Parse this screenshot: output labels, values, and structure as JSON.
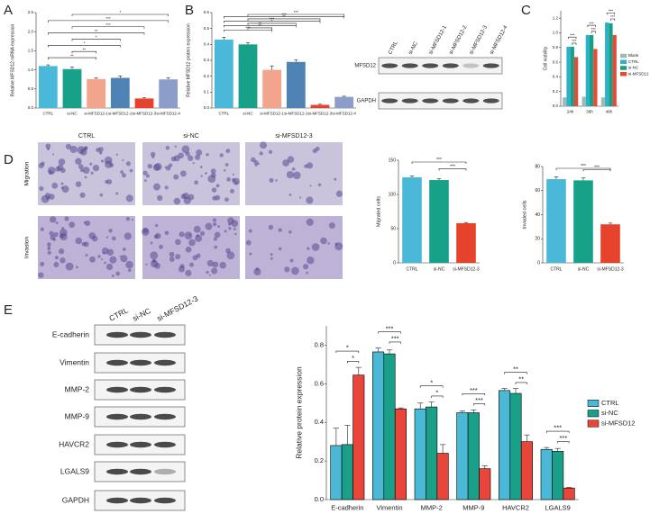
{
  "panel_labels": [
    "A",
    "B",
    "C",
    "D",
    "E"
  ],
  "blot_b": {
    "lanes": [
      "CTRL",
      "si-NC",
      "si-MFSD12-1",
      "si-MFSD12-2",
      "si-MFSD12-3",
      "si-MFSD12-4"
    ],
    "proteins": [
      "MFSD12",
      "GAPDH"
    ]
  },
  "micrographs": {
    "columns": [
      "CTRL",
      "si-NC",
      "si-MFSD12-3"
    ],
    "rows": [
      "Migration",
      "Invasion"
    ]
  },
  "blot_e": {
    "lanes": [
      "CTRL",
      "si-NC",
      "si-MFSD12-3"
    ],
    "proteins": [
      "E-cadherin",
      "Vimentin",
      "MMP-2",
      "MMP-9",
      "HAVCR2",
      "LGALS9",
      "GAPDH"
    ]
  },
  "chart_data": [
    {
      "type": "bar",
      "ylabel": "Relative MFSD12 mRNA expression",
      "categories": [
        "CTRL",
        "si-NC",
        "si-MFSD12-1",
        "si-MFSD12-2",
        "si-MFSD12-3",
        "si-MFSD12-4"
      ],
      "values": [
        1.1,
        1.02,
        0.76,
        0.79,
        0.25,
        0.75
      ],
      "errors": [
        0.03,
        0.05,
        0.03,
        0.05,
        0.02,
        0.04
      ],
      "colors": [
        "#4ab8d8",
        "#17a189",
        "#f2a48d",
        "#4f83b5",
        "#e5432c",
        "#8c9dc9"
      ],
      "ylim": [
        0,
        2.5
      ],
      "yticks": [
        {
          "value": 0,
          "label": "0.0"
        },
        0.5,
        {
          "value": 1,
          "label": "1.0"
        },
        1.5,
        {
          "value": 2,
          "label": "2.0"
        },
        2.5
      ],
      "brackets": [
        {
          "between": [
            "CTRL",
            "si-MFSD12-1"
          ],
          "label": "**"
        },
        {
          "between": [
            "si-NC",
            "si-MFSD12-1"
          ],
          "label": "**"
        },
        {
          "between": [
            "CTRL",
            "si-MFSD12-2"
          ],
          "label": "*"
        },
        {
          "between": [
            "si-NC",
            "si-MFSD12-2"
          ],
          "label": "*"
        },
        {
          "between": [
            "CTRL",
            "si-MFSD12-3"
          ],
          "label": "**"
        },
        {
          "between": [
            "si-NC",
            "si-MFSD12-3"
          ],
          "label": "***"
        },
        {
          "between": [
            "CTRL",
            "si-MFSD12-4"
          ],
          "label": "***"
        },
        {
          "between": [
            "si-NC",
            "si-MFSD12-4"
          ],
          "label": "*"
        }
      ]
    },
    {
      "type": "bar",
      "ylabel": "Relative MFSD12 protein expression",
      "categories": [
        "CTRL",
        "si-NC",
        "si-MFSD12-1",
        "si-MFSD12-2",
        "si-MFSD12-3",
        "si-MFSD12-4"
      ],
      "values": [
        0.43,
        0.4,
        0.24,
        0.29,
        0.02,
        0.07
      ],
      "errors": [
        0.015,
        0.01,
        0.025,
        0.012,
        0.004,
        0.004
      ],
      "colors": [
        "#4ab8d8",
        "#17a189",
        "#f2a48d",
        "#4f83b5",
        "#e5432c",
        "#8c9dc9"
      ],
      "ylim": [
        0,
        0.6
      ],
      "yticks": [
        {
          "value": 0,
          "label": "0.0"
        },
        0.1,
        0.2,
        0.3,
        0.4,
        0.5,
        0.6
      ],
      "brackets": [
        {
          "between": [
            "CTRL",
            "si-MFSD12-1"
          ],
          "label": "***"
        },
        {
          "between": [
            "si-NC",
            "si-MFSD12-1"
          ],
          "label": "**"
        },
        {
          "between": [
            "CTRL",
            "si-MFSD12-2"
          ],
          "label": "**"
        },
        {
          "between": [
            "si-NC",
            "si-MFSD12-2"
          ],
          "label": "*"
        },
        {
          "between": [
            "CTRL",
            "si-MFSD12-3"
          ],
          "label": "***"
        },
        {
          "between": [
            "si-NC",
            "si-MFSD12-3"
          ],
          "label": "**"
        },
        {
          "between": [
            "CTRL",
            "si-MFSD12-4"
          ],
          "label": "***"
        },
        {
          "between": [
            "si-NC",
            "si-MFSD12-4"
          ],
          "label": "***"
        }
      ]
    },
    {
      "type": "grouped_bar",
      "ylabel": "Cell viability",
      "categories": [
        "24h",
        "36h",
        "48h"
      ],
      "series": [
        {
          "name": "Blank",
          "color": "#9fb9b7",
          "values": [
            0.12,
            0.13,
            0.12
          ]
        },
        {
          "name": "CTRL",
          "color": "#2cb1c9",
          "values": [
            0.81,
            0.97,
            1.14
          ]
        },
        {
          "name": "si-NC",
          "color": "#1a9f86",
          "values": [
            0.81,
            0.97,
            1.13
          ]
        },
        {
          "name": "si-MFSD12",
          "color": "#e54b34",
          "values": [
            0.67,
            0.78,
            0.97
          ]
        }
      ],
      "ylim": [
        0,
        1.3
      ],
      "yticks": [
        {
          "value": 0,
          "label": "0.0"
        },
        0.2,
        0.4,
        0.6,
        0.8,
        {
          "value": 1,
          "label": "1.0"
        },
        1.2
      ],
      "legend": "right",
      "brackets": [
        {
          "category": "24h",
          "between": [
            "si-NC",
            "si-MFSD12"
          ],
          "label": "***"
        },
        {
          "category": "24h",
          "between": [
            "CTRL",
            "si-MFSD12"
          ],
          "label": "***"
        },
        {
          "category": "36h",
          "between": [
            "si-NC",
            "si-MFSD12"
          ],
          "label": "***"
        },
        {
          "category": "36h",
          "between": [
            "CTRL",
            "si-MFSD12"
          ],
          "label": "***"
        },
        {
          "category": "48h",
          "between": [
            "si-NC",
            "si-MFSD12"
          ],
          "label": "***"
        },
        {
          "category": "48h",
          "between": [
            "CTRL",
            "si-MFSD12"
          ],
          "label": "***"
        }
      ]
    },
    {
      "type": "bar",
      "ylabel": "Migrated cells",
      "categories": [
        "CTRL",
        "si-NC",
        "si-MFSD12-3"
      ],
      "values": [
        125,
        121,
        58
      ],
      "errors": [
        2,
        2,
        1
      ],
      "colors": [
        "#4ab8d8",
        "#17a189",
        "#e5432c"
      ],
      "ylim": [
        0,
        150
      ],
      "yticks": [
        0,
        50,
        100,
        150
      ],
      "brackets": [
        {
          "between": [
            "si-NC",
            "si-MFSD12-3"
          ],
          "label": "***"
        },
        {
          "between": [
            "CTRL",
            "si-MFSD12-3"
          ],
          "label": "***"
        }
      ]
    },
    {
      "type": "bar",
      "ylabel": "Invaded cells",
      "categories": [
        "CTRL",
        "si-NC",
        "si-MFSD12-3"
      ],
      "values": [
        69.5,
        68.5,
        32
      ],
      "errors": [
        2,
        2,
        1
      ],
      "colors": [
        "#4ab8d8",
        "#17a189",
        "#e5432c"
      ],
      "ylim": [
        0,
        80
      ],
      "yticks": [
        0,
        20,
        40,
        60,
        80
      ],
      "brackets": [
        {
          "between": [
            "si-NC",
            "si-MFSD12-3"
          ],
          "label": "***"
        },
        {
          "between": [
            "CTRL",
            "si-MFSD12-3"
          ],
          "label": "***"
        }
      ]
    },
    {
      "type": "grouped_bar",
      "ylabel": "Relative protein expression",
      "edgecolor": "#000000",
      "categories": [
        "E-cadherin",
        "Vimentin",
        "MMP-2",
        "MMP-9",
        "HAVCR2",
        "LGALS9"
      ],
      "series": [
        {
          "name": "CTRL",
          "color": "#4bb8d6",
          "values": [
            0.28,
            0.765,
            0.47,
            0.45,
            0.565,
            0.26
          ],
          "errors": [
            0.09,
            0.02,
            0.03,
            0.01,
            0.01,
            0.01
          ]
        },
        {
          "name": "si-NC",
          "color": "#1aa089",
          "values": [
            0.285,
            0.755,
            0.48,
            0.45,
            0.55,
            0.25
          ],
          "errors": [
            0.1,
            0.02,
            0.025,
            0.015,
            0.025,
            0.015
          ]
        },
        {
          "name": "si-MFSD12",
          "color": "#e9453a",
          "values": [
            0.645,
            0.47,
            0.24,
            0.16,
            0.3,
            0.06
          ],
          "errors": [
            0.04,
            0.005,
            0.045,
            0.015,
            0.035,
            0.003
          ]
        }
      ],
      "ylim": [
        0,
        0.9
      ],
      "yticks": [
        {
          "value": 0,
          "label": "0.0"
        },
        0.2,
        0.4,
        0.6,
        0.8
      ],
      "legend": "right",
      "brackets": [
        {
          "category": "E-cadherin",
          "between": [
            "si-NC",
            "si-MFSD12"
          ],
          "label": "*"
        },
        {
          "category": "E-cadherin",
          "between": [
            "CTRL",
            "si-MFSD12"
          ],
          "label": "*"
        },
        {
          "category": "Vimentin",
          "between": [
            "si-NC",
            "si-MFSD12"
          ],
          "label": "***"
        },
        {
          "category": "Vimentin",
          "between": [
            "CTRL",
            "si-MFSD12"
          ],
          "label": "***"
        },
        {
          "category": "MMP-2",
          "between": [
            "si-NC",
            "si-MFSD12"
          ],
          "label": "*"
        },
        {
          "category": "MMP-2",
          "between": [
            "CTRL",
            "si-MFSD12"
          ],
          "label": "*"
        },
        {
          "category": "MMP-9",
          "between": [
            "si-NC",
            "si-MFSD12"
          ],
          "label": "***"
        },
        {
          "category": "MMP-9",
          "between": [
            "CTRL",
            "si-MFSD12"
          ],
          "label": "***"
        },
        {
          "category": "HAVCR2",
          "between": [
            "si-NC",
            "si-MFSD12"
          ],
          "label": "**"
        },
        {
          "category": "HAVCR2",
          "between": [
            "CTRL",
            "si-MFSD12"
          ],
          "label": "**"
        },
        {
          "category": "LGALS9",
          "between": [
            "si-NC",
            "si-MFSD12"
          ],
          "label": "***"
        },
        {
          "category": "LGALS9",
          "between": [
            "CTRL",
            "si-MFSD12"
          ],
          "label": "***"
        }
      ]
    }
  ]
}
